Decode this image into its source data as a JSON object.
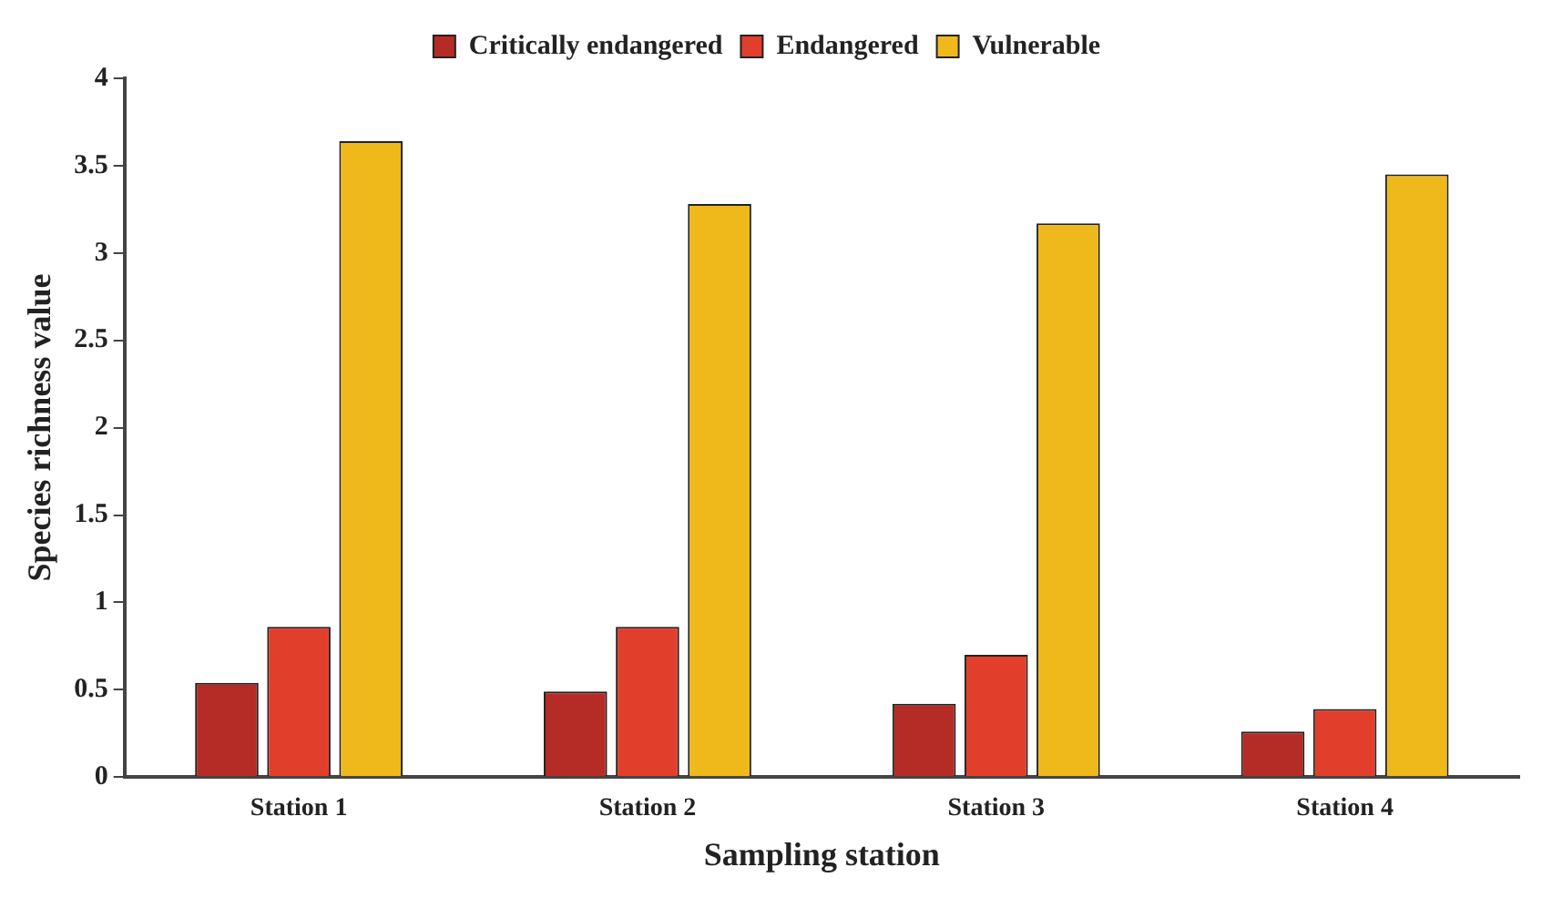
{
  "chart_data": {
    "type": "bar",
    "xlabel": "Sampling station",
    "ylabel": "Species richness value",
    "categories": [
      "Station 1",
      "Station 2",
      "Station 3",
      "Station 4"
    ],
    "series": [
      {
        "name": "Critically endangered",
        "color": "#b52b25",
        "values": [
          0.54,
          0.49,
          0.42,
          0.26
        ]
      },
      {
        "name": "Endangered",
        "color": "#e13e2c",
        "values": [
          0.86,
          0.86,
          0.7,
          0.39
        ]
      },
      {
        "name": "Vulnerable",
        "color": "#efb91c",
        "values": [
          3.64,
          3.28,
          3.17,
          3.45
        ]
      }
    ],
    "ylim": [
      0,
      4
    ],
    "yticks": [
      0,
      0.5,
      1,
      1.5,
      2,
      2.5,
      3,
      3.5,
      4
    ],
    "grid": false,
    "legend": "top"
  }
}
